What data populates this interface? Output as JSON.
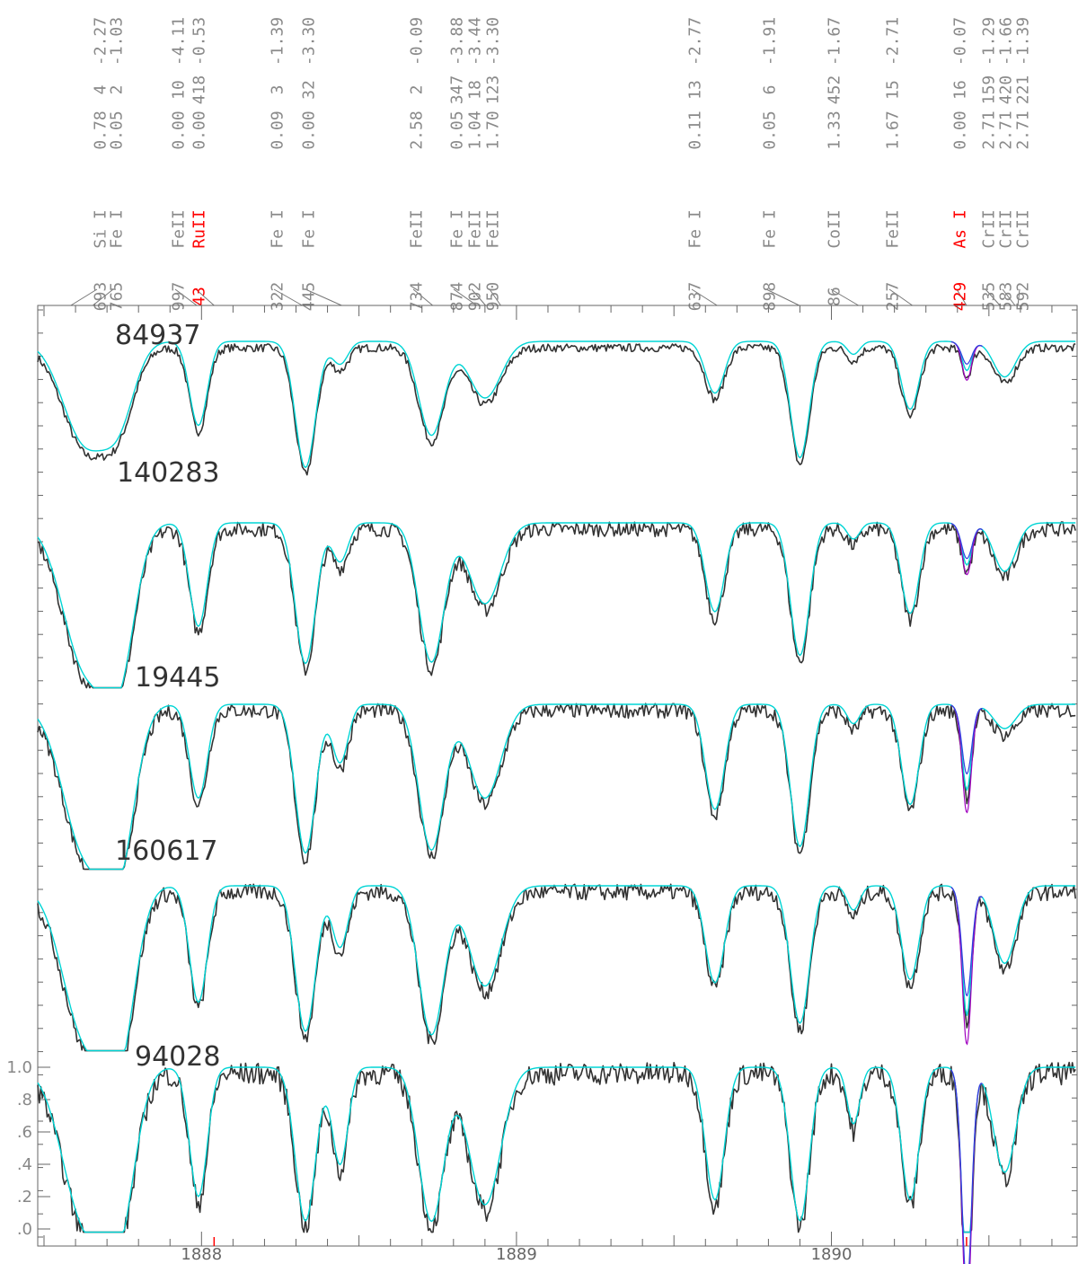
{
  "chart_data": {
    "type": "line",
    "title": "",
    "xlabel": "",
    "ylabel": "",
    "xlim": [
      1887.48,
      1890.78
    ],
    "ylim": [
      0.0,
      1.0
    ],
    "x_ticks": [
      "1888",
      "1889",
      "1890"
    ],
    "y_ticks": [
      "1.0",
      ".8",
      ".6",
      ".4",
      ".2",
      ".0"
    ],
    "colors": {
      "observed": "#333333",
      "synthetic": "#00d5d5",
      "synthetic_alt_high": "#a000c0",
      "synthetic_alt_low": "#3040e0",
      "highlight": "#ff0000"
    },
    "line_ids": [
      {
        "wl": "693",
        "species": "Si I",
        "chi": "0.78",
        "n": "4",
        "loggf": "-2.27",
        "x": 1887.585,
        "highlight": false
      },
      {
        "wl": "765",
        "species": "Fe I",
        "chi": "0.05",
        "n": "2",
        "loggf": "-1.03",
        "x": 1887.655,
        "highlight": false
      },
      {
        "wl": "997",
        "species": "FeII",
        "chi": "0.00",
        "n": "10",
        "loggf": "-4.11",
        "x": 1887.985,
        "highlight": false
      },
      {
        "wl": "43",
        "species": "RuII",
        "chi": "0.00",
        "n": "418",
        "loggf": "-0.53",
        "x": 1888.04,
        "highlight": true
      },
      {
        "wl": "322",
        "species": "Fe I",
        "chi": "0.09",
        "n": "3",
        "loggf": "-1.39",
        "x": 1888.32,
        "highlight": false
      },
      {
        "wl": "445",
        "species": "Fe I",
        "chi": "0.00",
        "n": "32",
        "loggf": "-3.30",
        "x": 1888.445,
        "highlight": false
      },
      {
        "wl": "734",
        "species": "FeII",
        "chi": "2.58",
        "n": "2",
        "loggf": "-0.09",
        "x": 1888.734,
        "highlight": false
      },
      {
        "wl": "874",
        "species": "Fe I",
        "chi": "0.05",
        "n": "347",
        "loggf": "-3.88",
        "x": 1888.874,
        "highlight": false
      },
      {
        "wl": "902",
        "species": "FeII",
        "chi": "1.04",
        "n": "18",
        "loggf": "-3.44",
        "x": 1888.902,
        "highlight": false
      },
      {
        "wl": "950",
        "species": "FeII",
        "chi": "1.70",
        "n": "123",
        "loggf": "-3.30",
        "x": 1888.95,
        "highlight": false
      },
      {
        "wl": "637",
        "species": "Fe I",
        "chi": "0.11",
        "n": "13",
        "loggf": "-2.77",
        "x": 1889.637,
        "highlight": false
      },
      {
        "wl": "898",
        "species": "Fe I",
        "chi": "0.05",
        "n": "6",
        "loggf": "-1.91",
        "x": 1889.898,
        "highlight": false
      },
      {
        "wl": "86",
        "species": "CoII",
        "chi": "1.33",
        "n": "452",
        "loggf": "-1.67",
        "x": 1890.086,
        "highlight": false
      },
      {
        "wl": "257",
        "species": "FeII",
        "chi": "1.67",
        "n": "15",
        "loggf": "-2.71",
        "x": 1890.257,
        "highlight": false
      },
      {
        "wl": "429",
        "species": "As I",
        "chi": "0.00",
        "n": "16",
        "loggf": "-0.07",
        "x": 1890.429,
        "highlight": true
      },
      {
        "wl": "535",
        "species": "CrII",
        "chi": "2.71",
        "n": "159",
        "loggf": "-1.29",
        "x": 1890.535,
        "highlight": false
      },
      {
        "wl": "583",
        "species": "CrII",
        "chi": "2.71",
        "n": "420",
        "loggf": "-1.66",
        "x": 1890.583,
        "highlight": false
      },
      {
        "wl": "592",
        "species": "CrII",
        "chi": "2.71",
        "n": "221",
        "loggf": "-1.39",
        "x": 1890.592,
        "highlight": false
      }
    ],
    "features": [
      {
        "x": 1887.63,
        "w": 0.07,
        "d": [
          0.62,
          0.88,
          0.9,
          0.92,
          0.95
        ]
      },
      {
        "x": 1887.74,
        "w": 0.05,
        "d": [
          0.4,
          0.8,
          0.85,
          0.9,
          0.85
        ]
      },
      {
        "x": 1887.99,
        "w": 0.028,
        "d": [
          0.52,
          0.64,
          0.58,
          0.72,
          0.8
        ]
      },
      {
        "x": 1888.33,
        "w": 0.032,
        "d": [
          0.78,
          0.87,
          0.92,
          0.9,
          0.95
        ]
      },
      {
        "x": 1888.44,
        "w": 0.025,
        "d": [
          0.14,
          0.24,
          0.36,
          0.38,
          0.6
        ]
      },
      {
        "x": 1888.73,
        "w": 0.04,
        "d": [
          0.58,
          0.86,
          0.9,
          0.92,
          0.95
        ]
      },
      {
        "x": 1888.9,
        "w": 0.05,
        "d": [
          0.35,
          0.5,
          0.58,
          0.62,
          0.85
        ]
      },
      {
        "x": 1889.63,
        "w": 0.03,
        "d": [
          0.32,
          0.55,
          0.65,
          0.6,
          0.82
        ]
      },
      {
        "x": 1889.9,
        "w": 0.03,
        "d": [
          0.72,
          0.82,
          0.88,
          0.85,
          0.95
        ]
      },
      {
        "x": 1890.07,
        "w": 0.02,
        "d": [
          0.08,
          0.1,
          0.12,
          0.15,
          0.35
        ]
      },
      {
        "x": 1890.25,
        "w": 0.028,
        "d": [
          0.42,
          0.56,
          0.62,
          0.58,
          0.82
        ]
      },
      {
        "x": 1890.43,
        "w": 0.018,
        "d": [
          0.1,
          0.18,
          0.25,
          0.4,
          0.75
        ]
      },
      {
        "x": 1890.55,
        "w": 0.035,
        "d": [
          0.22,
          0.3,
          0.15,
          0.48,
          0.65
        ]
      }
    ],
    "series": [
      {
        "star": "84937",
        "offset": 4,
        "v_asi": [
          0.14,
          0.08,
          0.04
        ]
      },
      {
        "star": "140283",
        "offset": 3,
        "v_asi": [
          0.14,
          0.08,
          0.04
        ]
      },
      {
        "star": "19445",
        "offset": 2,
        "v_asi": [
          0.42,
          0.28,
          0.18
        ]
      },
      {
        "star": "160617",
        "offset": 1,
        "v_asi": [
          0.58,
          0.4,
          0.28
        ]
      },
      {
        "star": "94028",
        "offset": 0,
        "v_asi": [
          0.78,
          0.7,
          0.62
        ]
      }
    ]
  }
}
